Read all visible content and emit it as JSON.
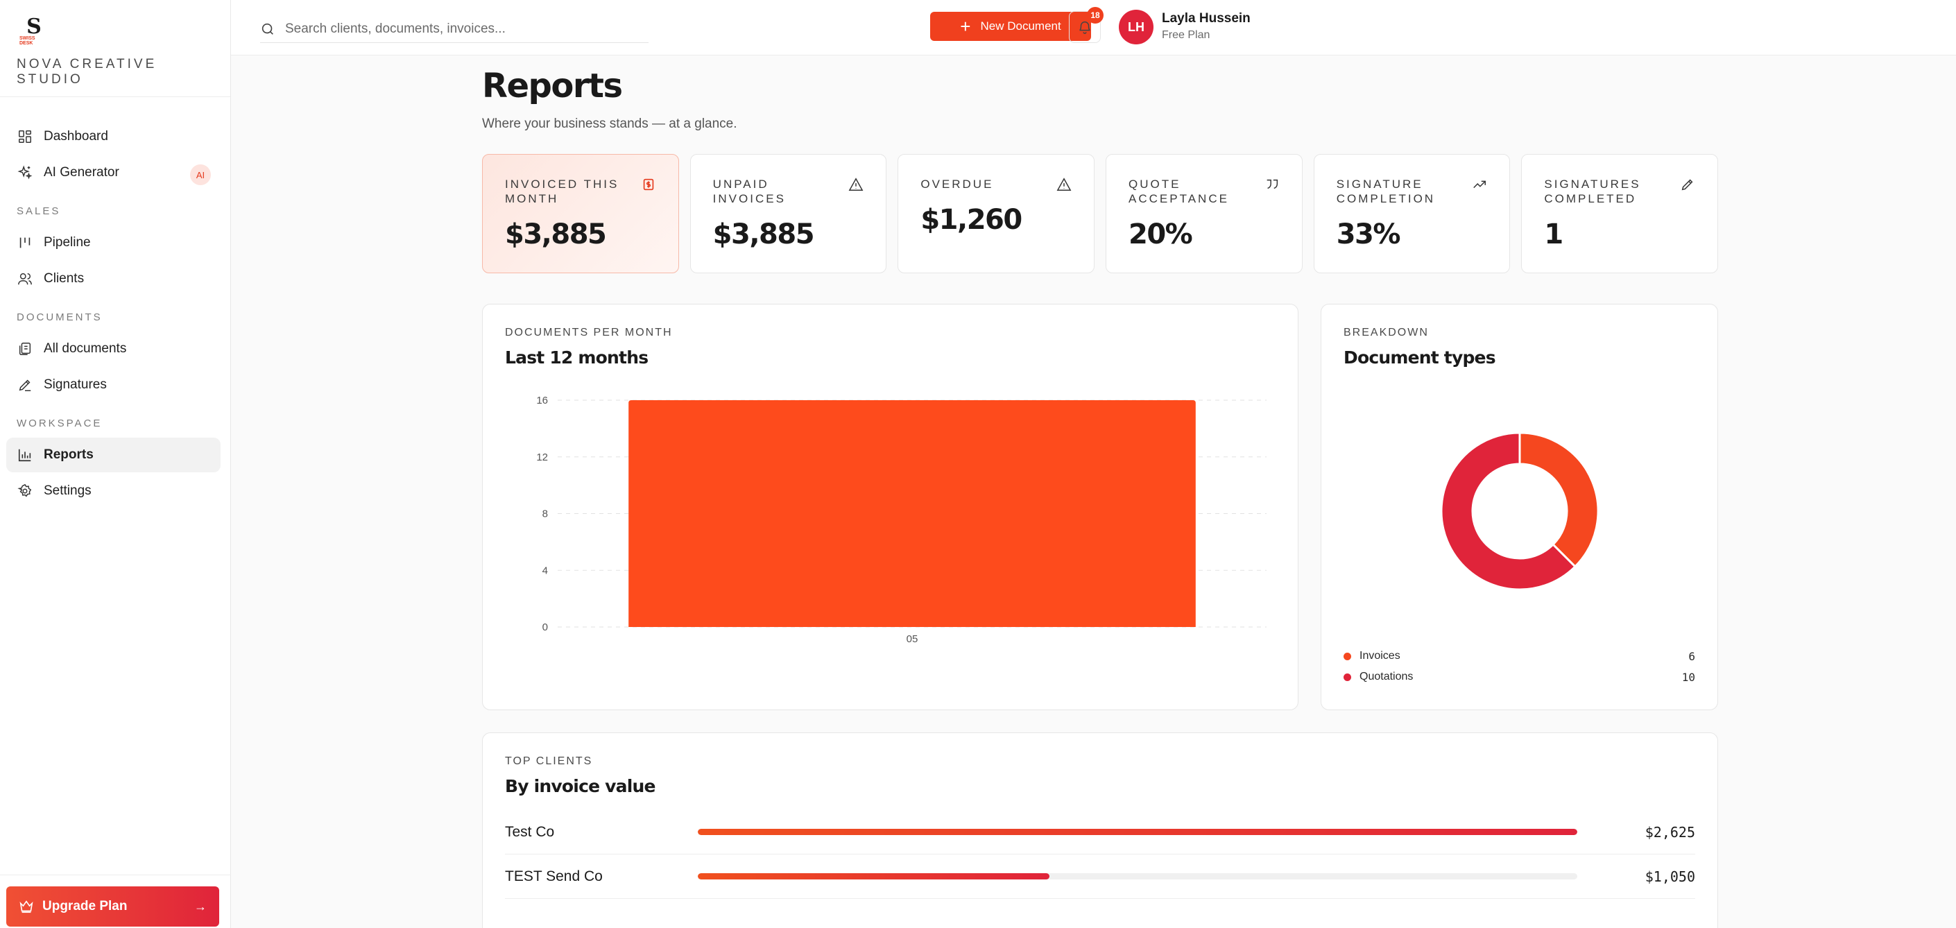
{
  "brand": {
    "logo_letter": "S",
    "logo_text": "SWISS DESK",
    "name": "NOVA CREATIVE STUDIO"
  },
  "sidebar": {
    "items_top": [
      {
        "label": "Dashboard",
        "icon": "dashboard-icon"
      },
      {
        "label": "AI Generator",
        "icon": "sparkles-icon",
        "badge": "AI"
      }
    ],
    "sections": [
      {
        "label": "SALES",
        "items": [
          {
            "label": "Pipeline",
            "icon": "pipeline-icon"
          },
          {
            "label": "Clients",
            "icon": "users-icon"
          }
        ]
      },
      {
        "label": "DOCUMENTS",
        "items": [
          {
            "label": "All documents",
            "icon": "documents-icon"
          },
          {
            "label": "Signatures",
            "icon": "pen-icon"
          }
        ]
      },
      {
        "label": "WORKSPACE",
        "items": [
          {
            "label": "Reports",
            "icon": "bar-chart-icon",
            "active": true
          },
          {
            "label": "Settings",
            "icon": "gear-icon"
          }
        ]
      }
    ],
    "upgrade_label": "Upgrade Plan"
  },
  "topbar": {
    "search_placeholder": "Search clients, documents, invoices...",
    "new_document_label": "New Document",
    "notification_count": "18",
    "user": {
      "initials": "LH",
      "name": "Layla Hussein",
      "plan": "Free Plan"
    }
  },
  "page": {
    "title": "Reports",
    "subtitle": "Where your business stands — at a glance."
  },
  "kpis": [
    {
      "label": "INVOICED THIS MONTH",
      "value": "$3,885",
      "icon": "dollar-icon"
    },
    {
      "label": "UNPAID INVOICES",
      "value": "$3,885",
      "icon": "warning-icon"
    },
    {
      "label": "OVERDUE",
      "value": "$1,260",
      "icon": "warning-icon"
    },
    {
      "label": "QUOTE ACCEPTANCE",
      "value": "20%",
      "icon": "quote-icon"
    },
    {
      "label": "SIGNATURE COMPLETION",
      "value": "33%",
      "icon": "trend-up-icon"
    },
    {
      "label": "SIGNATURES COMPLETED",
      "value": "1",
      "icon": "pen-icon"
    }
  ],
  "docs_chart": {
    "kicker": "DOCUMENTS PER MONTH",
    "title": "Last 12 months"
  },
  "breakdown": {
    "kicker": "BREAKDOWN",
    "title": "Document types"
  },
  "chart_data": [
    {
      "type": "bar",
      "categories": [
        "05"
      ],
      "values": [
        16
      ],
      "title": "",
      "xlabel": "",
      "ylabel": "",
      "yticks": [
        0,
        4,
        8,
        12,
        16
      ],
      "ylim": [
        0,
        16
      ],
      "grid": true,
      "color": "#fe4b1c"
    },
    {
      "type": "pie",
      "donut": true,
      "labels": [
        "Invoices",
        "Quotations"
      ],
      "values": [
        6,
        10
      ],
      "colors": [
        "#f5471f",
        "#e0243a"
      ],
      "legend": "bottom"
    }
  ],
  "top_clients": {
    "kicker": "TOP CLIENTS",
    "title": "By invoice value",
    "rows": [
      {
        "name": "Test Co",
        "value": "$2,625",
        "fraction": 1.0
      },
      {
        "name": "TEST Send Co",
        "value": "$1,050",
        "fraction": 0.4
      }
    ]
  },
  "colors": {
    "accent": "#f0401e",
    "accent_dark": "#e0243a"
  }
}
